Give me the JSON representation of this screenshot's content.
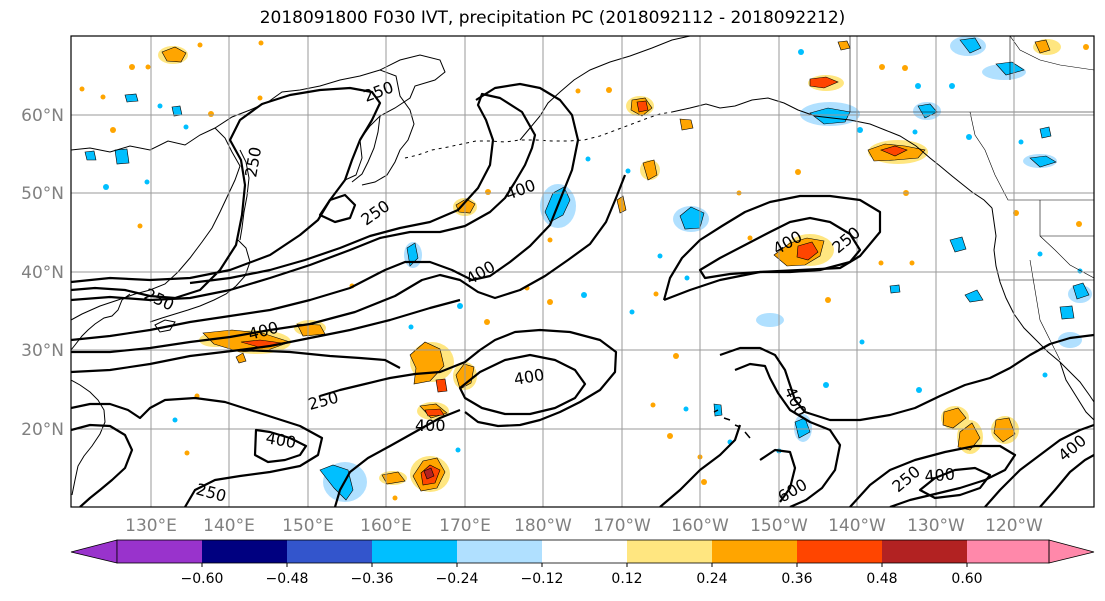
{
  "title": "2018091800 F030 IVT, precipitation PC (2018092112 - 2018092212)",
  "map": {
    "lat_labels": [
      "60°N",
      "50°N",
      "40°N",
      "30°N",
      "20°N"
    ],
    "lon_labels": [
      "130°E",
      "140°E",
      "150°E",
      "160°E",
      "170°E",
      "180°W",
      "170°W",
      "160°W",
      "150°W",
      "140°W",
      "130°W",
      "120°W"
    ],
    "contour_labels": [
      "250",
      "250",
      "250",
      "250",
      "250",
      "250",
      "250",
      "250",
      "400",
      "400",
      "400",
      "400",
      "400",
      "400",
      "400",
      "400",
      "400",
      "400",
      "600"
    ]
  },
  "colorbar": {
    "ticks": [
      "−0.60",
      "−0.48",
      "−0.36",
      "−0.24",
      "−0.12",
      "0.12",
      "0.24",
      "0.36",
      "0.48",
      "0.60"
    ],
    "colors": [
      "#9933CC",
      "#000080",
      "#3355CC",
      "#00BFFF",
      "#B0E0FF",
      "#FFFFFF",
      "#FFE680",
      "#FFA500",
      "#FF4500",
      "#B22222",
      "#FF88AA"
    ]
  }
}
